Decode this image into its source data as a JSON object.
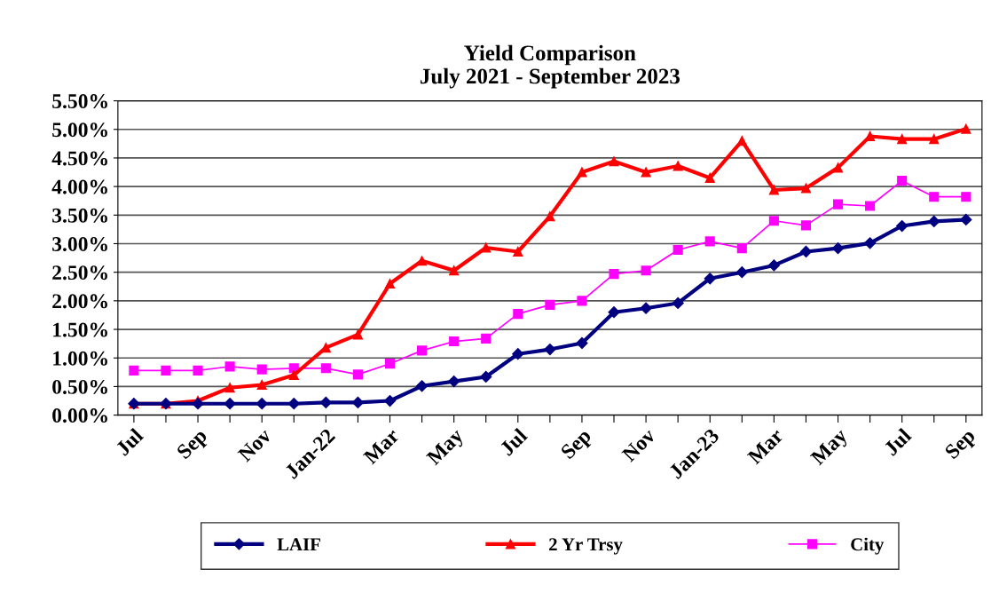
{
  "chart_data": {
    "type": "line",
    "title": "Yield Comparison\nJuly 2021 - September 2023",
    "categories": [
      "Jul",
      null,
      "Sep",
      null,
      "Nov",
      null,
      "Jan-22",
      null,
      "Mar",
      null,
      "May",
      null,
      "Jul",
      null,
      "Sep",
      null,
      "Nov",
      null,
      "Jan-23",
      null,
      "Mar",
      null,
      "May",
      null,
      "Jul",
      null,
      "Sep"
    ],
    "series": [
      {
        "name": "LAIF",
        "color": "#000080",
        "marker": "diamond",
        "values": [
          0.2,
          0.2,
          0.2,
          0.2,
          0.2,
          0.2,
          0.22,
          0.22,
          0.25,
          0.51,
          0.59,
          0.67,
          1.07,
          1.15,
          1.26,
          1.8,
          1.87,
          1.96,
          2.39,
          2.5,
          2.62,
          2.86,
          2.92,
          3.01,
          3.31,
          3.39,
          3.42
        ]
      },
      {
        "name": "2 Yr Trsy",
        "color": "#ff0000",
        "marker": "triangle",
        "values": [
          0.2,
          0.2,
          0.25,
          0.48,
          0.53,
          0.7,
          1.18,
          1.41,
          2.3,
          2.7,
          2.53,
          2.93,
          2.86,
          3.48,
          4.25,
          4.44,
          4.25,
          4.36,
          4.15,
          4.8,
          3.94,
          3.97,
          4.33,
          4.88,
          4.83,
          4.83,
          5.01
        ]
      },
      {
        "name": "City",
        "color": "#ff00ff",
        "marker": "square",
        "values": [
          0.78,
          0.78,
          0.78,
          0.85,
          0.8,
          0.82,
          0.82,
          0.71,
          0.9,
          1.13,
          1.29,
          1.34,
          1.77,
          1.93,
          2.0,
          2.47,
          2.53,
          2.89,
          3.04,
          2.92,
          3.4,
          3.32,
          3.69,
          3.66,
          4.1,
          3.82,
          3.82
        ]
      }
    ],
    "ylim": [
      0,
      5.5
    ],
    "yticks": [
      {
        "value": 0,
        "label": "0.00%"
      },
      {
        "value": 0.5,
        "label": "0.50%"
      },
      {
        "value": 1,
        "label": "1.00%"
      },
      {
        "value": 1.5,
        "label": "1.50%"
      },
      {
        "value": 2,
        "label": "2.00%"
      },
      {
        "value": 2.5,
        "label": "2.50%"
      },
      {
        "value": 3,
        "label": "3.00%"
      },
      {
        "value": 3.5,
        "label": "3.50%"
      },
      {
        "value": 4,
        "label": "4.00%"
      },
      {
        "value": 4.5,
        "label": "4.50%"
      },
      {
        "value": 5,
        "label": "5.00%"
      },
      {
        "value": 5.5,
        "label": "5.50%"
      }
    ],
    "grid": "y",
    "legend": "bottom"
  }
}
